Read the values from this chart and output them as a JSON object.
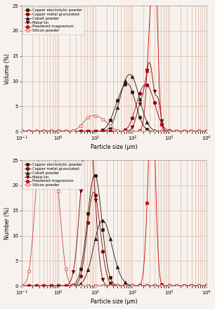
{
  "ylabel_top": "Volume (%)",
  "ylabel_bottom": "Number (%)",
  "xlabel": "Particle size (μm)",
  "xlim_log": [
    -1,
    4
  ],
  "ylim": [
    0,
    25
  ],
  "yticks": [
    0,
    5,
    10,
    15,
    20,
    25
  ],
  "legend_labels": [
    "Copper electrolytic powder",
    "Copper metal granulated",
    "Cobalt powder",
    "Metal tin",
    "Powdered magnesium",
    "Silicon powder"
  ],
  "line_colors": [
    "#2b1200",
    "#8b0000",
    "#1a1a1a",
    "#6b0000",
    "#cc0000",
    "#cc4444"
  ],
  "marker_types": [
    "s",
    "o",
    "^",
    "v",
    "s",
    "s"
  ],
  "marker_face": [
    "#2b1200",
    "#8b0000",
    "#1a1a1a",
    "#6b0000",
    "#cc0000",
    "#ffcccc"
  ],
  "background_color": "#f7f2ed",
  "grid_color": "#e0b8a8",
  "vol_peaks": [
    [
      [
        80,
        0.2,
        8.5
      ],
      [
        40,
        0.18,
        3.5
      ]
    ],
    [
      [
        270,
        0.2,
        8.0
      ],
      [
        150,
        0.16,
        3.5
      ]
    ],
    [
      [
        100,
        0.22,
        9.5
      ],
      [
        55,
        0.18,
        4.0
      ]
    ],
    [
      [
        180,
        0.13,
        5.8
      ],
      [
        300,
        0.1,
        12.2
      ],
      [
        500,
        0.07,
        5.5
      ]
    ],
    [
      [
        340,
        0.09,
        18.9
      ],
      [
        430,
        0.07,
        20.5
      ],
      [
        280,
        0.09,
        6.5
      ]
    ],
    [
      [
        10,
        0.2,
        2.0
      ],
      [
        6,
        0.18,
        1.5
      ],
      [
        18,
        0.18,
        1.2
      ]
    ]
  ],
  "num_peaks": [
    [
      [
        10,
        0.18,
        21.0
      ],
      [
        6,
        0.15,
        3.0
      ]
    ],
    [
      [
        10,
        0.16,
        14.8
      ],
      [
        7,
        0.14,
        6.0
      ]
    ],
    [
      [
        18,
        0.24,
        10.0
      ],
      [
        12,
        0.2,
        4.0
      ]
    ],
    [
      [
        5,
        0.15,
        20.0
      ],
      [
        7,
        0.13,
        14.5
      ],
      [
        9,
        0.12,
        8.0
      ]
    ],
    [
      [
        300,
        0.09,
        21.5
      ],
      [
        350,
        0.07,
        15.8
      ],
      [
        410,
        0.07,
        9.0
      ]
    ],
    [
      [
        0.3,
        0.14,
        19.8
      ],
      [
        0.5,
        0.16,
        16.4
      ],
      [
        0.7,
        0.14,
        13.3
      ],
      [
        1.0,
        0.13,
        8.9
      ]
    ]
  ]
}
